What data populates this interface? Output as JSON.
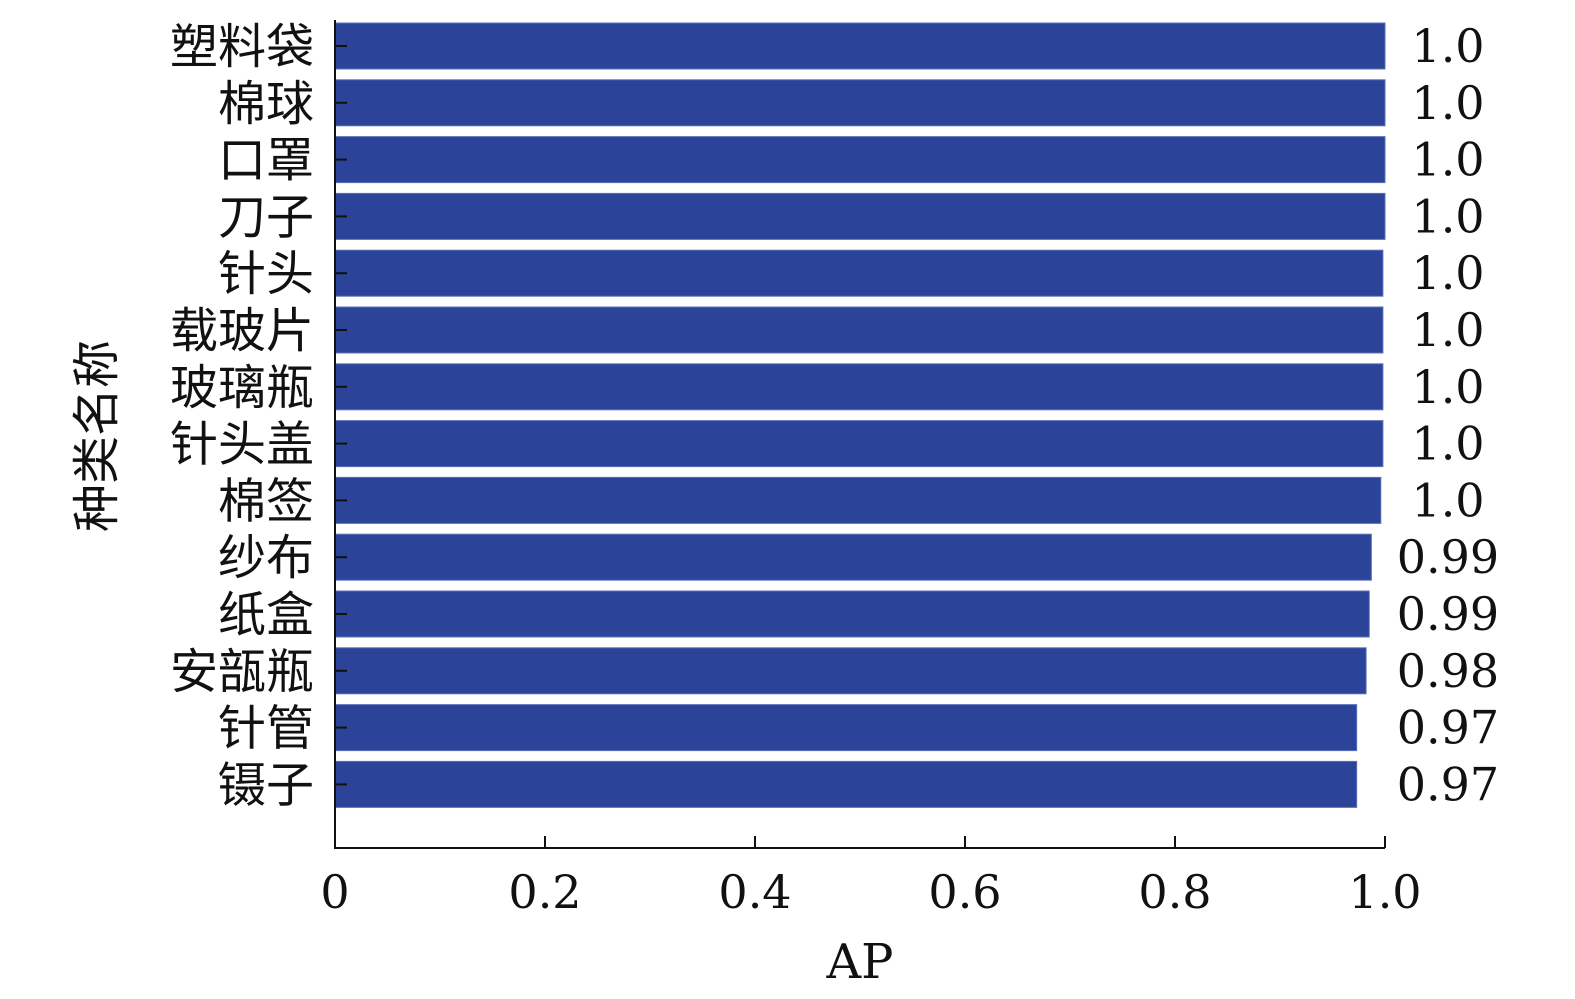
{
  "chart_data": {
    "type": "bar",
    "orientation": "horizontal",
    "categories": [
      "塑料袋",
      "棉球",
      "口罩",
      "刀子",
      "针头",
      "载玻片",
      "玻璃瓶",
      "针头盖",
      "棉签",
      "纱布",
      "纸盒",
      "安瓿瓶",
      "针管",
      "镊子"
    ],
    "values": [
      1.0,
      1.0,
      1.0,
      1.0,
      0.998,
      0.998,
      0.998,
      0.998,
      0.996,
      0.987,
      0.985,
      0.982,
      0.973,
      0.973
    ],
    "value_labels": [
      "1.0",
      "1.0",
      "1.0",
      "1.0",
      "1.0",
      "1.0",
      "1.0",
      "1.0",
      "1.0",
      "0.99",
      "0.99",
      "0.98",
      "0.97",
      "0.97"
    ],
    "xlabel": "AP",
    "ylabel": "种类名称",
    "xlim": [
      0,
      1.0
    ],
    "xticks": [
      0,
      0.2,
      0.4,
      0.6,
      0.8,
      1.0
    ],
    "xtick_labels": [
      "0",
      "0.2",
      "0.4",
      "0.6",
      "0.8",
      "1.0"
    ],
    "grid": false,
    "bar_color": "#2b4499"
  }
}
